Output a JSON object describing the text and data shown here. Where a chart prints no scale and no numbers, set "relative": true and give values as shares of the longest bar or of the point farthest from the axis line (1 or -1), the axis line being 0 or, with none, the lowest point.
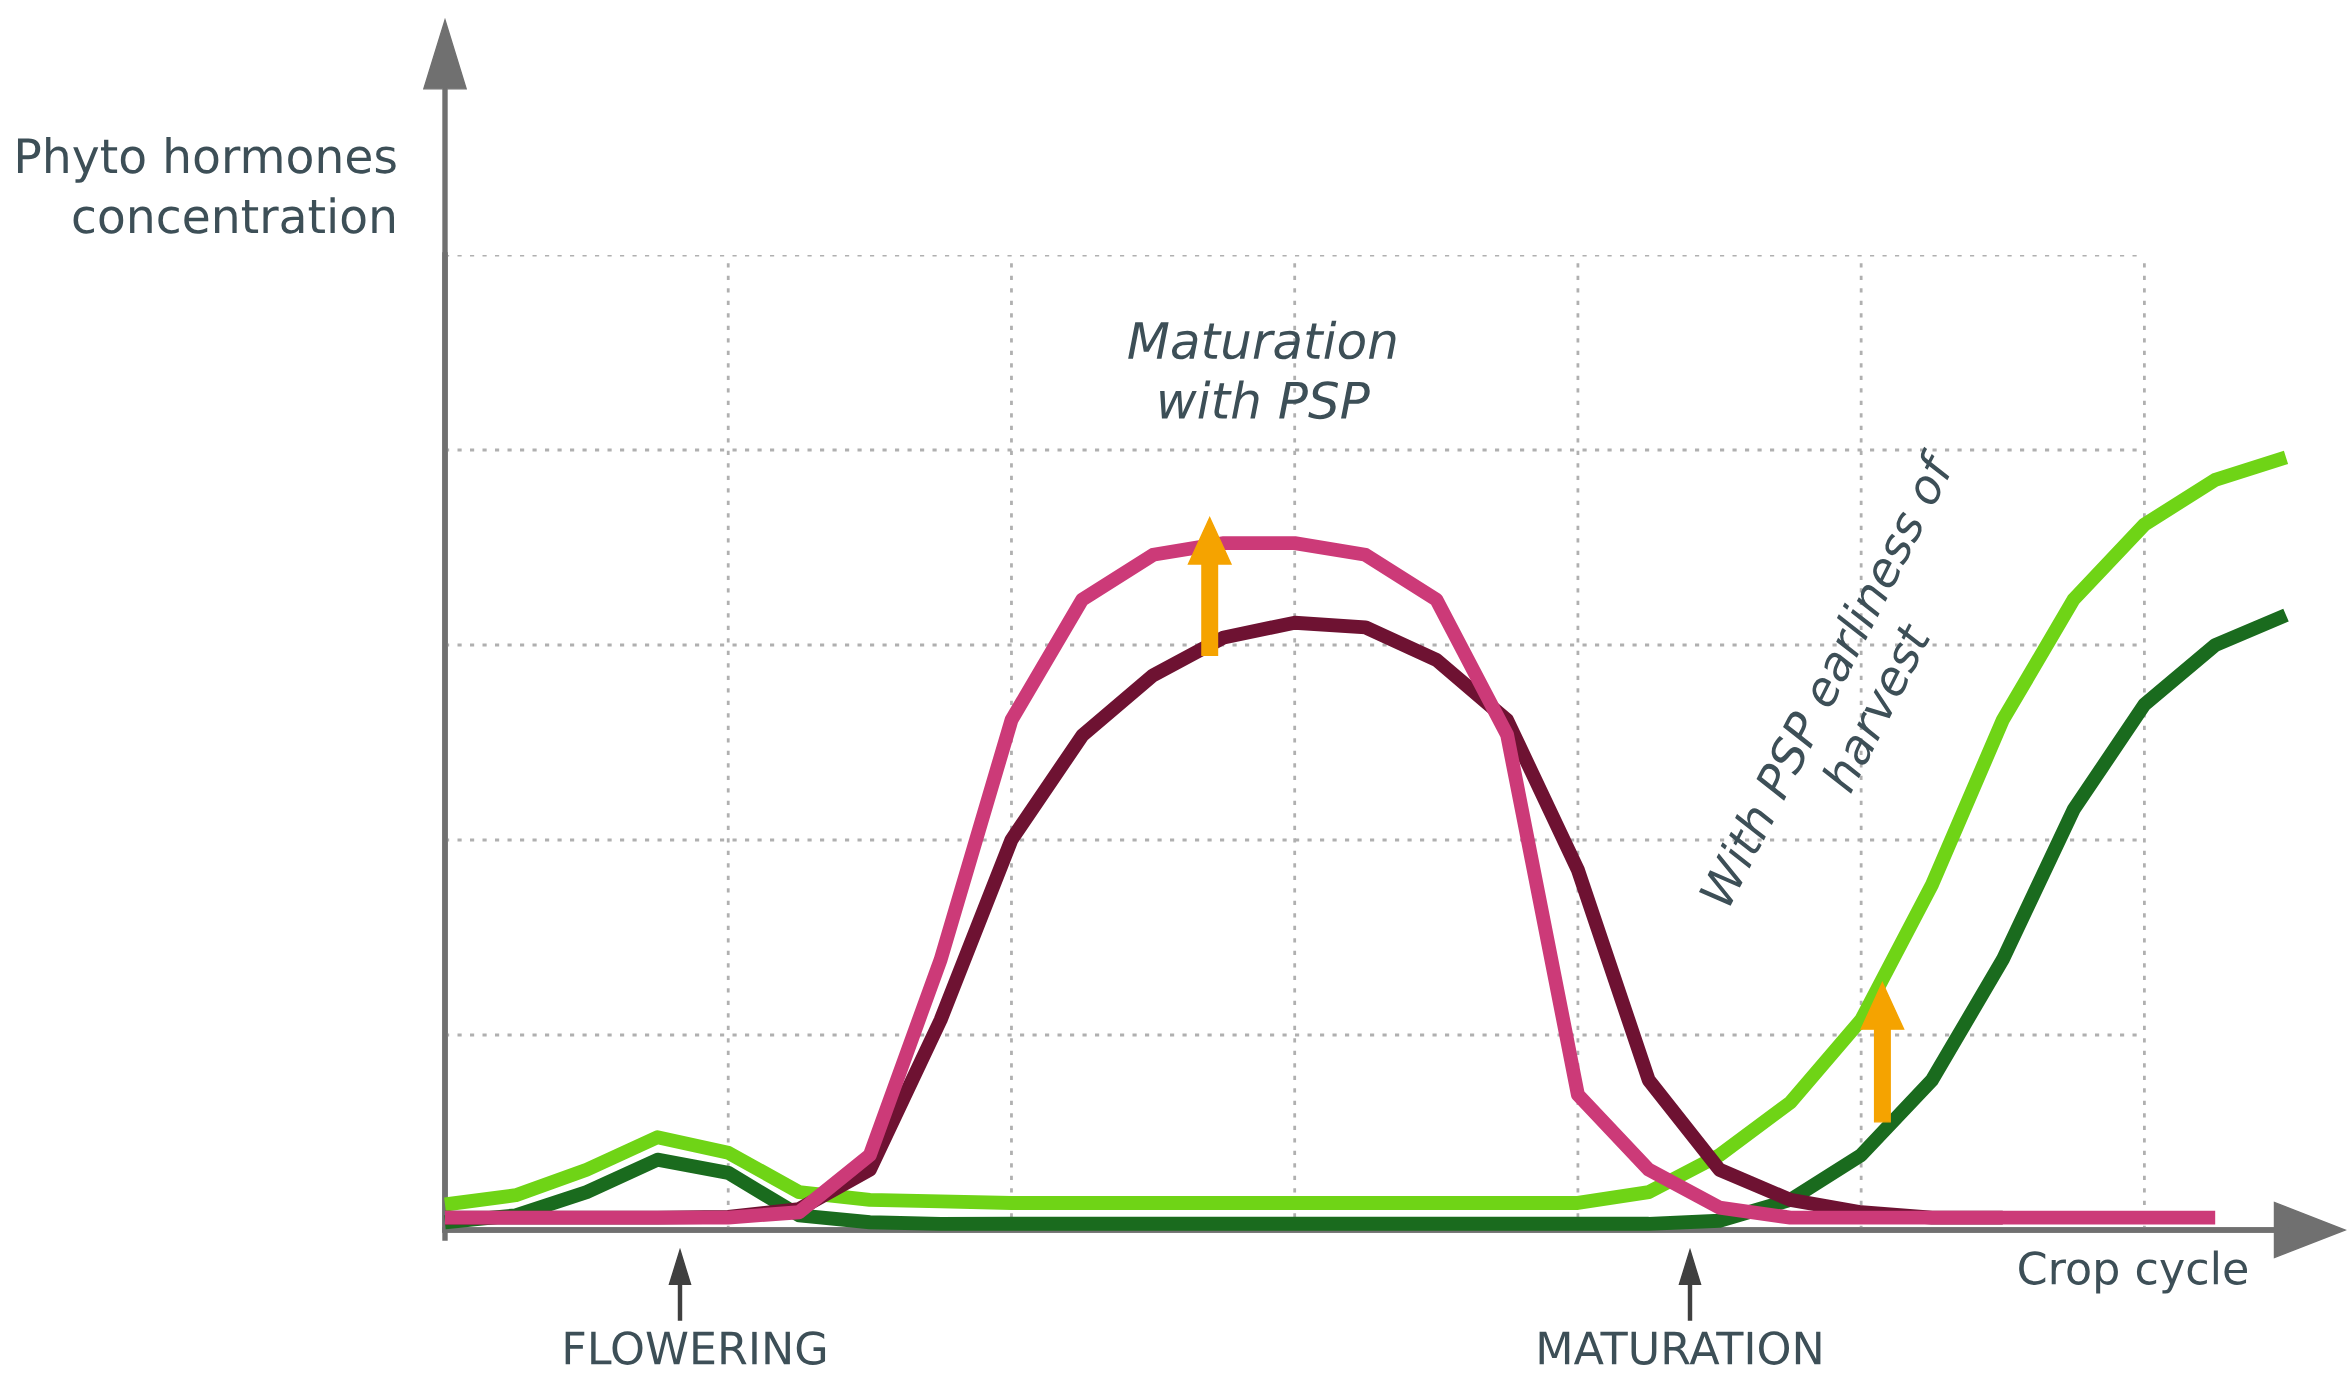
{
  "chart_data": {
    "type": "line",
    "relative": true,
    "ylabel": "Phyto hormones\nconcentration",
    "xlabel": "Crop cycle",
    "grid": true,
    "marker": "none",
    "line_style": "solid",
    "categories": [
      null,
      null,
      null,
      null,
      null,
      null,
      null,
      null,
      null,
      null,
      null,
      null,
      null,
      null,
      null,
      null,
      null,
      null,
      null,
      null,
      null,
      null,
      null,
      null,
      null,
      null,
      null
    ],
    "series": [
      {
        "color": "#6fd416",
        "values": [
          0.033,
          0.045,
          0.078,
          0.12,
          0.1,
          0.049,
          0.039,
          0.037,
          0.035,
          0.035,
          0.035,
          0.035,
          0.035,
          0.035,
          0.035,
          0.035,
          0.035,
          0.049,
          0.097,
          0.165,
          0.272,
          0.447,
          0.66,
          0.816,
          0.913,
          0.971,
          1
        ]
      },
      {
        "color": "#1a6b1e",
        "values": [
          0.01,
          0.019,
          0.049,
          0.091,
          0.074,
          0.019,
          0.01,
          0.008,
          0.008,
          0.008,
          0.008,
          0.008,
          0.008,
          0.008,
          0.008,
          0.008,
          0.008,
          0.008,
          0.012,
          0.039,
          0.097,
          0.194,
          0.35,
          0.544,
          0.68,
          0.757,
          0.796
        ]
      },
      {
        "color": "#6e1232",
        "values": [
          0.016,
          0.016,
          0.016,
          0.016,
          0.017,
          0.027,
          0.078,
          0.272,
          0.505,
          0.64,
          0.718,
          0.767,
          0.786,
          0.78,
          0.738,
          0.66,
          0.466,
          0.194,
          0.078,
          0.039,
          0.023,
          0.016,
          0.016,
          null,
          null,
          null,
          null
        ]
      },
      {
        "color": "#cc3a78",
        "values": [
          0.016,
          0.016,
          0.016,
          0.016,
          0.016,
          0.023,
          0.097,
          0.35,
          0.66,
          0.816,
          0.874,
          0.889,
          0.889,
          0.874,
          0.816,
          0.641,
          0.175,
          0.078,
          0.029,
          0.016,
          0.016,
          0.016,
          0.016,
          0.016,
          0.016,
          0.016,
          null
        ]
      }
    ],
    "annotations": [
      "Maturation\nwith PSP",
      "With PSP earliness of\nharvest",
      "FLOWERING",
      "MATURATION"
    ]
  }
}
